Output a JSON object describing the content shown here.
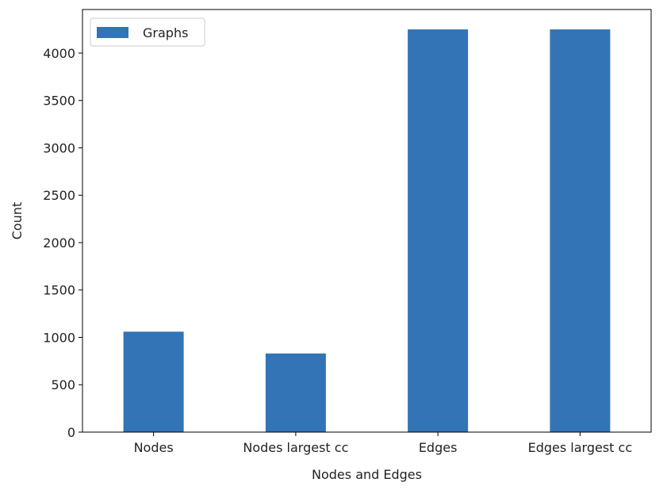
{
  "chart_data": {
    "type": "bar",
    "categories": [
      "Nodes",
      "Nodes largest cc",
      "Edges",
      "Edges largest cc"
    ],
    "series": [
      {
        "name": "Graphs",
        "values": [
          1060,
          830,
          4250,
          4250
        ],
        "color": "#3274b5"
      }
    ],
    "xlabel": "Nodes and Edges",
    "ylabel": "Count",
    "ylim": [
      0,
      4460
    ],
    "yticks": [
      0,
      500,
      1000,
      1500,
      2000,
      2500,
      3000,
      3500,
      4000
    ],
    "grid": false,
    "legend": "top-left"
  }
}
